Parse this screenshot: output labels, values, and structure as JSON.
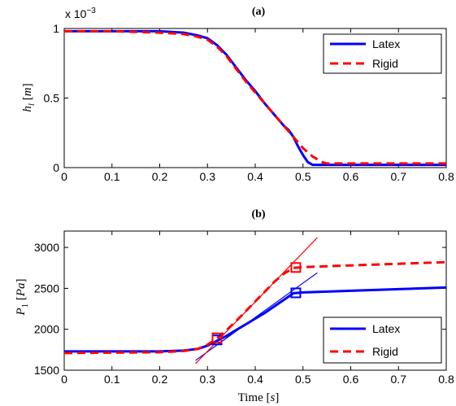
{
  "colors": {
    "latex": "#0000ff",
    "rigid": "#ff0000",
    "axis": "#000000",
    "background": "#ffffff"
  },
  "chart_data": [
    {
      "type": "line",
      "title": "(a)",
      "ylabel_var": "h",
      "ylabel_sub": "l",
      "ylabel_unit": "m",
      "yscale_label": "x 10",
      "yscale_exp": "−3",
      "xlim": [
        0,
        0.8
      ],
      "ylim": [
        0,
        1
      ],
      "x_ticks": [
        "0",
        "0.1",
        "0.2",
        "0.3",
        "0.4",
        "0.5",
        "0.6",
        "0.7",
        "0.8"
      ],
      "y_ticks": [
        "0",
        "0.5",
        "1"
      ],
      "grid": false,
      "legend_position": "top-right",
      "series": [
        {
          "name": "Latex",
          "style": "solid",
          "x": [
            0,
            0.1,
            0.2,
            0.25,
            0.28,
            0.3,
            0.32,
            0.34,
            0.36,
            0.38,
            0.4,
            0.42,
            0.44,
            0.46,
            0.47,
            0.48,
            0.49,
            0.5,
            0.51,
            0.52,
            0.53,
            0.6,
            0.7,
            0.8
          ],
          "y": [
            0.98,
            0.98,
            0.98,
            0.97,
            0.95,
            0.93,
            0.88,
            0.81,
            0.72,
            0.63,
            0.55,
            0.46,
            0.38,
            0.3,
            0.27,
            0.22,
            0.15,
            0.09,
            0.04,
            0.02,
            0.02,
            0.02,
            0.02,
            0.02
          ]
        },
        {
          "name": "Rigid",
          "style": "dashed",
          "x": [
            0,
            0.1,
            0.2,
            0.25,
            0.28,
            0.3,
            0.32,
            0.34,
            0.36,
            0.38,
            0.4,
            0.42,
            0.44,
            0.46,
            0.48,
            0.5,
            0.52,
            0.54,
            0.55,
            0.6,
            0.7,
            0.8
          ],
          "y": [
            0.98,
            0.98,
            0.97,
            0.96,
            0.94,
            0.92,
            0.87,
            0.8,
            0.71,
            0.62,
            0.54,
            0.46,
            0.38,
            0.3,
            0.22,
            0.14,
            0.08,
            0.04,
            0.03,
            0.03,
            0.03,
            0.03
          ]
        }
      ]
    },
    {
      "type": "line",
      "title": "(b)",
      "ylabel_var": "P",
      "ylabel_sub": "1",
      "ylabel_unit": "Pa",
      "xlabel_text": "Time",
      "xlabel_unit": "s",
      "xlim": [
        0,
        0.8
      ],
      "ylim": [
        1500,
        3200
      ],
      "x_ticks": [
        "0",
        "0.1",
        "0.2",
        "0.3",
        "0.4",
        "0.5",
        "0.6",
        "0.7",
        "0.8"
      ],
      "y_ticks": [
        "1500",
        "2000",
        "2500",
        "3000"
      ],
      "grid": false,
      "legend_position": "bottom-right",
      "series": [
        {
          "name": "Latex",
          "style": "solid",
          "x": [
            0,
            0.1,
            0.2,
            0.25,
            0.28,
            0.3,
            0.32,
            0.34,
            0.36,
            0.38,
            0.4,
            0.42,
            0.44,
            0.46,
            0.48,
            0.5,
            0.6,
            0.7,
            0.8
          ],
          "y": [
            1730,
            1730,
            1730,
            1740,
            1760,
            1800,
            1860,
            1920,
            1990,
            2060,
            2130,
            2200,
            2280,
            2360,
            2440,
            2450,
            2470,
            2490,
            2510
          ]
        },
        {
          "name": "Rigid",
          "style": "dashed",
          "x": [
            0,
            0.1,
            0.2,
            0.25,
            0.28,
            0.3,
            0.32,
            0.34,
            0.36,
            0.38,
            0.4,
            0.42,
            0.44,
            0.46,
            0.48,
            0.5,
            0.6,
            0.7,
            0.8
          ],
          "y": [
            1710,
            1715,
            1720,
            1735,
            1760,
            1810,
            1890,
            1990,
            2100,
            2220,
            2340,
            2460,
            2580,
            2680,
            2750,
            2760,
            2780,
            2800,
            2820
          ]
        }
      ],
      "markers": [
        {
          "series": "Latex",
          "x": 0.32,
          "y": 1870
        },
        {
          "series": "Latex",
          "x": 0.485,
          "y": 2445
        },
        {
          "series": "Rigid",
          "x": 0.32,
          "y": 1895
        },
        {
          "series": "Rigid",
          "x": 0.485,
          "y": 2755
        }
      ],
      "tangent_lines": [
        {
          "series": "Latex",
          "x": [
            0.275,
            0.53
          ],
          "y": [
            1620,
            2690
          ]
        },
        {
          "series": "Rigid",
          "x": [
            0.275,
            0.53
          ],
          "y": [
            1580,
            3120
          ]
        }
      ]
    }
  ]
}
